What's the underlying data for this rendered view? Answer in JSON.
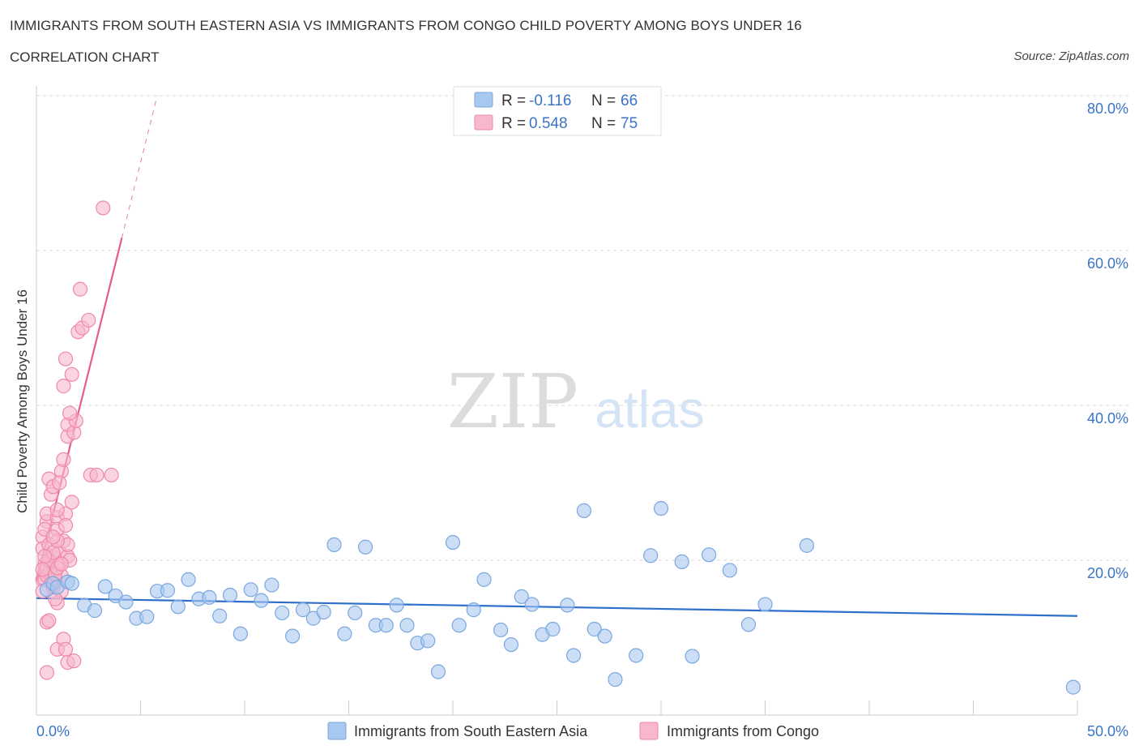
{
  "header": {
    "title": "IMMIGRANTS FROM SOUTH EASTERN ASIA VS IMMIGRANTS FROM CONGO CHILD POVERTY AMONG BOYS UNDER 16",
    "subtitle": "CORRELATION CHART",
    "source": "Source: ZipAtlas.com"
  },
  "watermark": {
    "zip": "ZIP",
    "atlas": "atlas"
  },
  "colors": {
    "blue_fill": "#a9c8f0",
    "blue_stroke": "#7aa7e0",
    "blue_line": "#2e6fcc",
    "pink_fill": "#f7b8cb",
    "pink_stroke": "#ee89a9",
    "pink_line": "#e75c8a",
    "axis_text": "#3a74c9",
    "grid": "#d9d9d9"
  },
  "chart_data": {
    "type": "scatter",
    "title": "IMMIGRANTS FROM SOUTH EASTERN ASIA VS IMMIGRANTS FROM CONGO CHILD POVERTY AMONG BOYS UNDER 16",
    "xlabel": "",
    "ylabel": "Child Poverty Among Boys Under 16",
    "xlim": [
      0,
      50
    ],
    "ylim": [
      0,
      80
    ],
    "x_tick_labels": [
      "0.0%",
      "50.0%"
    ],
    "y_tick_labels": [
      "20.0%",
      "40.0%",
      "60.0%",
      "80.0%"
    ],
    "y_ticks": [
      20,
      40,
      60,
      80
    ],
    "legend": [
      {
        "r_label": "R = ",
        "r_value": "-0.116",
        "n_label": "N = ",
        "n_value": "66"
      },
      {
        "r_label": "R = ",
        "r_value": "0.548",
        "n_label": "N = ",
        "n_value": "75"
      }
    ],
    "series": [
      {
        "name": "Immigrants from South Eastern Asia",
        "color": "blue",
        "R": -0.116,
        "N": 66,
        "trend": {
          "x0": 0,
          "y0": 15.1,
          "x1": 50,
          "y1": 12.8,
          "dash_from": null
        },
        "points": [
          [
            0.5,
            16.2
          ],
          [
            0.8,
            17.0
          ],
          [
            1.0,
            16.5
          ],
          [
            1.5,
            17.2
          ],
          [
            1.7,
            17.0
          ],
          [
            2.3,
            14.2
          ],
          [
            2.8,
            13.5
          ],
          [
            3.3,
            16.6
          ],
          [
            3.8,
            15.4
          ],
          [
            4.3,
            14.6
          ],
          [
            4.8,
            12.5
          ],
          [
            5.3,
            12.7
          ],
          [
            5.8,
            16.0
          ],
          [
            6.3,
            16.1
          ],
          [
            6.8,
            14.0
          ],
          [
            7.3,
            17.5
          ],
          [
            7.8,
            15.0
          ],
          [
            8.3,
            15.2
          ],
          [
            8.8,
            12.8
          ],
          [
            9.3,
            15.5
          ],
          [
            9.8,
            10.5
          ],
          [
            10.3,
            16.2
          ],
          [
            10.8,
            14.8
          ],
          [
            11.3,
            16.8
          ],
          [
            11.8,
            13.2
          ],
          [
            12.3,
            10.2
          ],
          [
            12.8,
            13.6
          ],
          [
            13.3,
            12.5
          ],
          [
            13.8,
            13.3
          ],
          [
            14.3,
            22.0
          ],
          [
            14.8,
            10.5
          ],
          [
            15.3,
            13.2
          ],
          [
            15.8,
            21.7
          ],
          [
            16.3,
            11.6
          ],
          [
            16.8,
            11.6
          ],
          [
            17.3,
            14.2
          ],
          [
            17.8,
            11.6
          ],
          [
            18.3,
            9.3
          ],
          [
            18.8,
            9.6
          ],
          [
            19.3,
            5.6
          ],
          [
            20.0,
            22.3
          ],
          [
            20.3,
            11.6
          ],
          [
            21.0,
            13.6
          ],
          [
            21.5,
            17.5
          ],
          [
            22.3,
            11.0
          ],
          [
            22.8,
            9.1
          ],
          [
            23.3,
            15.3
          ],
          [
            23.8,
            14.3
          ],
          [
            24.3,
            10.4
          ],
          [
            24.8,
            11.1
          ],
          [
            25.5,
            14.2
          ],
          [
            25.8,
            7.7
          ],
          [
            26.3,
            26.4
          ],
          [
            26.8,
            11.1
          ],
          [
            27.3,
            10.2
          ],
          [
            27.8,
            4.6
          ],
          [
            28.8,
            7.7
          ],
          [
            29.5,
            20.6
          ],
          [
            30.0,
            26.7
          ],
          [
            31.0,
            19.8
          ],
          [
            31.5,
            7.6
          ],
          [
            32.3,
            20.7
          ],
          [
            33.3,
            18.7
          ],
          [
            34.2,
            11.7
          ],
          [
            35.0,
            14.3
          ],
          [
            37.0,
            21.9
          ],
          [
            49.8,
            3.6
          ]
        ]
      },
      {
        "name": "Immigrants from Congo",
        "color": "pink",
        "R": 0.548,
        "N": 75,
        "trend": {
          "x0": 0,
          "y0": 17.3,
          "x1": 5.8,
          "y1": 80.0,
          "dash_from": 4.1
        },
        "points": [
          [
            0.3,
            23.0
          ],
          [
            0.3,
            21.5
          ],
          [
            0.4,
            19.5
          ],
          [
            0.4,
            18.5
          ],
          [
            0.3,
            17.5
          ],
          [
            0.5,
            25.0
          ],
          [
            0.5,
            26.0
          ],
          [
            0.6,
            22.0
          ],
          [
            0.6,
            20.0
          ],
          [
            0.4,
            24.0
          ],
          [
            0.7,
            19.0
          ],
          [
            0.7,
            18.0
          ],
          [
            0.8,
            20.5
          ],
          [
            0.8,
            16.5
          ],
          [
            0.9,
            17.5
          ],
          [
            0.6,
            30.5
          ],
          [
            0.7,
            28.5
          ],
          [
            0.8,
            29.5
          ],
          [
            1.0,
            25.5
          ],
          [
            1.0,
            24.0
          ],
          [
            1.1,
            21.0
          ],
          [
            1.1,
            19.5
          ],
          [
            1.2,
            18.0
          ],
          [
            1.2,
            16.0
          ],
          [
            1.3,
            22.5
          ],
          [
            1.0,
            14.5
          ],
          [
            0.9,
            15.0
          ],
          [
            1.4,
            26.0
          ],
          [
            1.4,
            24.5
          ],
          [
            1.5,
            20.5
          ],
          [
            1.5,
            22.0
          ],
          [
            1.6,
            20.0
          ],
          [
            1.2,
            31.5
          ],
          [
            1.3,
            33.0
          ],
          [
            1.1,
            30.0
          ],
          [
            1.7,
            27.5
          ],
          [
            1.5,
            36.0
          ],
          [
            1.5,
            37.5
          ],
          [
            1.8,
            36.5
          ],
          [
            1.9,
            38.0
          ],
          [
            1.6,
            39.0
          ],
          [
            1.3,
            42.5
          ],
          [
            1.4,
            46.0
          ],
          [
            1.7,
            44.0
          ],
          [
            2.0,
            49.5
          ],
          [
            2.2,
            50.0
          ],
          [
            2.5,
            51.0
          ],
          [
            2.1,
            55.0
          ],
          [
            2.6,
            31.0
          ],
          [
            2.9,
            31.0
          ],
          [
            3.6,
            31.0
          ],
          [
            0.5,
            12.0
          ],
          [
            0.6,
            12.2
          ],
          [
            1.0,
            8.5
          ],
          [
            1.3,
            9.8
          ],
          [
            1.4,
            8.5
          ],
          [
            1.5,
            6.8
          ],
          [
            1.8,
            7.0
          ],
          [
            0.5,
            5.5
          ],
          [
            0.4,
            17.5
          ],
          [
            0.5,
            18.0
          ],
          [
            0.5,
            19.0
          ],
          [
            0.6,
            20.0
          ],
          [
            0.8,
            21.0
          ],
          [
            1.0,
            22.5
          ],
          [
            0.4,
            20.5
          ],
          [
            0.3,
            18.8
          ],
          [
            0.7,
            17.0
          ],
          [
            0.9,
            18.2
          ],
          [
            1.0,
            19.0
          ],
          [
            0.8,
            23.0
          ],
          [
            1.0,
            26.5
          ],
          [
            1.2,
            19.5
          ],
          [
            0.3,
            16.0
          ],
          [
            3.2,
            65.5
          ]
        ]
      }
    ]
  }
}
